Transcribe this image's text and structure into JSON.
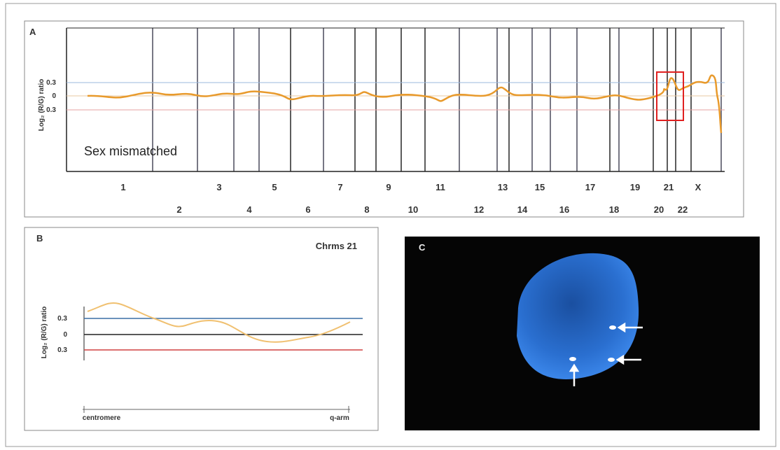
{
  "panels": [
    {
      "label": "A",
      "y_axis_label": "Log₂ (R/G) ratio",
      "y_ticks": [
        "0.3",
        "0",
        "0.3"
      ],
      "annotation": "Sex mismatched",
      "chromosomes": [
        "1",
        "2",
        "3",
        "4",
        "5",
        "6",
        "7",
        "8",
        "9",
        "10",
        "11",
        "12",
        "13",
        "14",
        "15",
        "16",
        "17",
        "18",
        "19",
        "20",
        "21",
        "22",
        "X"
      ]
    },
    {
      "label": "B",
      "title": "Chrms 21",
      "y_axis_label": "Log₂ (R/G) ratio",
      "y_ticks": [
        "0.3",
        "0",
        "0.3"
      ],
      "x_labels": [
        "centromere",
        "q-arm"
      ]
    },
    {
      "label": "C"
    }
  ]
}
